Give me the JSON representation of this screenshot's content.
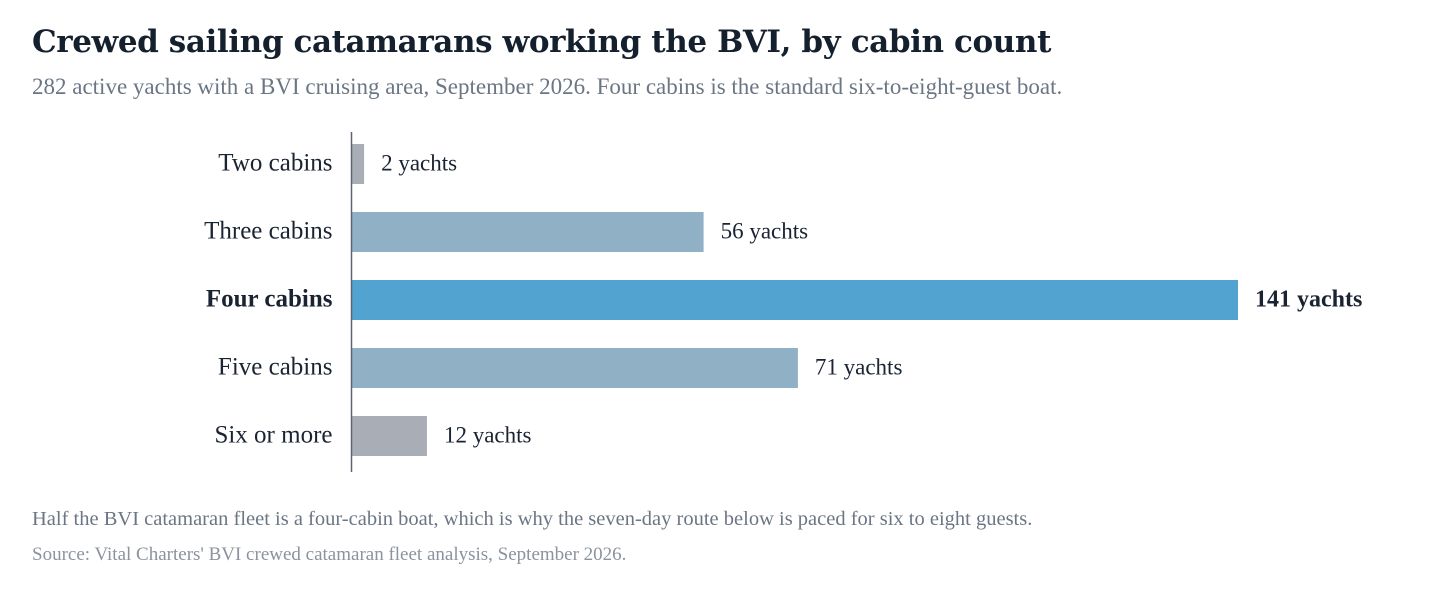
{
  "header": {
    "title": "Crewed sailing catamarans working the BVI, by cabin count",
    "subtitle": "282 active yachts with a BVI cruising area, September 2026. Four cabins is the standard six-to-eight-guest boat."
  },
  "chart_data": {
    "type": "bar",
    "orientation": "horizontal",
    "categories": [
      "Two cabins",
      "Three cabins",
      "Four cabins",
      "Five cabins",
      "Six or more"
    ],
    "values": [
      2,
      56,
      141,
      71,
      12
    ],
    "value_labels": [
      "2 yachts",
      "56 yachts",
      "141 yachts",
      "71 yachts",
      "12 yachts"
    ],
    "highlight_category": "Four cabins",
    "title": "Crewed sailing catamarans working the BVI, by cabin count",
    "xlabel": "",
    "ylabel": "",
    "xlim": [
      0,
      141
    ],
    "grid": false,
    "legend": "none",
    "colors": {
      "small": "#a9aeb6",
      "mid": "#8fb0c5",
      "highlight": "#52a3cf",
      "axis": "#5c6570"
    },
    "bar_color_keys": [
      "small",
      "mid",
      "highlight",
      "mid",
      "small"
    ]
  },
  "footer": {
    "note": "Half the BVI catamaran fleet is a four-cabin boat, which is why the seven-day route below is paced for six to eight guests.",
    "source": "Source: Vital Charters' BVI crewed catamaran fleet analysis, September 2026."
  }
}
